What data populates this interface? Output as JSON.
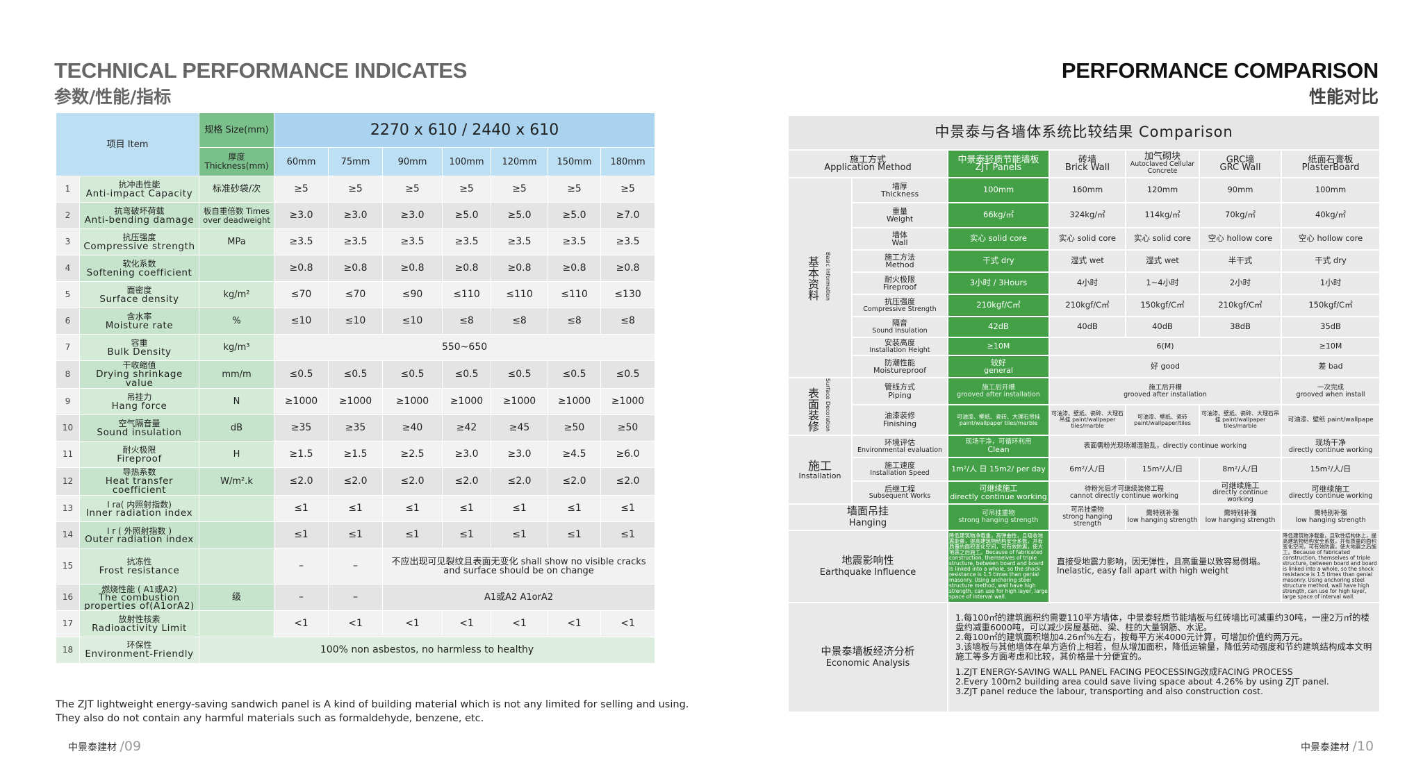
{
  "left": {
    "title_en": "TECHNICAL PERFORMANCE INDICATES",
    "title_cn": "参数/性能/指标",
    "item_header": "项目 Item",
    "size_header": "规格 Size(mm)",
    "size_value": "2270 x 610 / 2440 x 610",
    "thickness_header": "厚度 Thickness(mm)",
    "thicknesses": [
      "60mm",
      "75mm",
      "90mm",
      "100mm",
      "120mm",
      "150mm",
      "180mm"
    ],
    "rows": [
      {
        "no": "1",
        "cn": "抗冲击性能",
        "en": "Anti-impact Capacity",
        "unit": "标准砂袋/次",
        "values": [
          "≥5",
          "≥5",
          "≥5",
          "≥5",
          "≥5",
          "≥5",
          "≥5"
        ]
      },
      {
        "no": "2",
        "cn": "抗弯破坏荷载",
        "en": "Anti-bending damage",
        "unit": "板自重倍数 Times over deadweight",
        "values": [
          "≥3.0",
          "≥3.0",
          "≥3.0",
          "≥5.0",
          "≥5.0",
          "≥5.0",
          "≥7.0"
        ]
      },
      {
        "no": "3",
        "cn": "抗压强度",
        "en": "Compressive strength",
        "unit": "MPa",
        "values": [
          "≥3.5",
          "≥3.5",
          "≥3.5",
          "≥3.5",
          "≥3.5",
          "≥3.5",
          "≥3.5"
        ]
      },
      {
        "no": "4",
        "cn": "软化系数",
        "en": "Softening coefficient",
        "unit": "",
        "values": [
          "≥0.8",
          "≥0.8",
          "≥0.8",
          "≥0.8",
          "≥0.8",
          "≥0.8",
          "≥0.8"
        ]
      },
      {
        "no": "5",
        "cn": "面密度",
        "en": "Surface density",
        "unit": "kg/m²",
        "values": [
          "≤70",
          "≤70",
          "≤90",
          "≤110",
          "≤110",
          "≤110",
          "≤130"
        ]
      },
      {
        "no": "6",
        "cn": "含水率",
        "en": "Moisture rate",
        "unit": "%",
        "values": [
          "≤10",
          "≤10",
          "≤10",
          "≤8",
          "≤8",
          "≤8",
          "≤8"
        ]
      },
      {
        "no": "7",
        "cn": "容重",
        "en": "Bulk Density",
        "unit": "kg/m³",
        "span": "550~650"
      },
      {
        "no": "8",
        "cn": "干收缩值",
        "en": "Drying shrinkage value",
        "unit": "mm/m",
        "values": [
          "≤0.5",
          "≤0.5",
          "≤0.5",
          "≤0.5",
          "≤0.5",
          "≤0.5",
          "≤0.5"
        ]
      },
      {
        "no": "9",
        "cn": "吊挂力",
        "en": "Hang force",
        "unit": "N",
        "values": [
          "≥1000",
          "≥1000",
          "≥1000",
          "≥1000",
          "≥1000",
          "≥1000",
          "≥1000"
        ]
      },
      {
        "no": "10",
        "cn": "空气隔音量",
        "en": "Sound insulation",
        "unit": "dB",
        "values": [
          "≥35",
          "≥35",
          "≥40",
          "≥42",
          "≥45",
          "≥50",
          "≥50"
        ]
      },
      {
        "no": "11",
        "cn": "耐火极限",
        "en": "Fireproof",
        "unit": "H",
        "values": [
          "≥1.5",
          "≥1.5",
          "≥2.5",
          "≥3.0",
          "≥3.0",
          "≥4.5",
          "≥6.0"
        ]
      },
      {
        "no": "12",
        "cn": "导热系数",
        "en": "Heat transfer coefficient",
        "unit": "W/m².k",
        "values": [
          "≤2.0",
          "≤2.0",
          "≤2.0",
          "≤2.0",
          "≤2.0",
          "≤2.0",
          "≤2.0"
        ]
      },
      {
        "no": "13",
        "cn": "I ra( 内照射指数)",
        "en": "Inner radiation index",
        "unit": "",
        "values": [
          "≤1",
          "≤1",
          "≤1",
          "≤1",
          "≤1",
          "≤1",
          "≤1"
        ]
      },
      {
        "no": "14",
        "cn": "I r ( 外照射指数 )",
        "en": "Outer radiation index",
        "unit": "",
        "values": [
          "≤1",
          "≤1",
          "≤1",
          "≤1",
          "≤1",
          "≤1",
          "≤1"
        ]
      },
      {
        "no": "15",
        "cn": "抗冻性",
        "en": "Frost resistance",
        "unit": "",
        "pre": [
          "–",
          "–"
        ],
        "span": "不应出现可见裂纹且表面无变化 shall show no visible cracks and surface should be on change"
      },
      {
        "no": "16",
        "cn": "燃烧性能 ( A1或A2)",
        "en": "The combustion properties of(A1orA2)",
        "unit": "级",
        "pre": [
          "–",
          "–"
        ],
        "span": "A1或A2 A1orA2"
      },
      {
        "no": "17",
        "cn": "放射性核素",
        "en": "Radioactivity Limit",
        "unit": "",
        "values": [
          "<1",
          "<1",
          "<1",
          "<1",
          "<1",
          "<1",
          "<1"
        ]
      },
      {
        "no": "18",
        "cn": "环保性",
        "en": "Environment-Friendly",
        "full": "100% non asbestos, no harmless to healthy"
      }
    ],
    "note_line1": "The ZJT lightweight energy-saving sandwich panel is A kind of building material which is not any limited for selling and using.",
    "note_line2": "They also do not contain any harmful materials such as formaldehyde, benzene, etc.",
    "footer_brand": "中景泰建材",
    "footer_page": "/09"
  },
  "right": {
    "title_en": "PERFORMANCE COMPARISON",
    "title_cn": "性能对比",
    "table_title": "中景泰与各墙体系统比较结果 Comparison",
    "method_cn": "施工方式",
    "method_en": "Application Method",
    "columns": [
      {
        "cn": "中景泰轻质节能墙板",
        "en": "ZJT Panels"
      },
      {
        "cn": "砖墙",
        "en": "Brick Wall"
      },
      {
        "cn": "加气砌块",
        "en": "Autoclaved Cellular Concrete"
      },
      {
        "cn": "GRC墙",
        "en": "GRC Wall"
      },
      {
        "cn": "纸面石膏板",
        "en": "PlasterBoard"
      }
    ],
    "cat_basic_cn": "基本资料",
    "cat_basic_en": "Basic Information",
    "cat_surface_cn": "表面装修",
    "cat_surface_en": "Surface Decoration",
    "cat_install_cn": "施工",
    "cat_install_en": "Installation",
    "basic": [
      {
        "cn": "墙厚",
        "en": "Thickness",
        "vals": [
          "100mm",
          "160mm",
          "120mm",
          "90mm",
          "100mm"
        ]
      },
      {
        "cn": "重量",
        "en": "Weight",
        "vals": [
          "66kg/㎡",
          "324kg/㎡",
          "114kg/㎡",
          "70kg/㎡",
          "40kg/㎡"
        ]
      },
      {
        "cn": "墙体",
        "en": "Wall",
        "vals": [
          "实心 solid core",
          "实心 solid core",
          "实心 solid core",
          "空心 hollow core",
          "空心 hollow core"
        ]
      },
      {
        "cn": "施工方法",
        "en": "Method",
        "vals": [
          "干式 dry",
          "湿式 wet",
          "湿式 wet",
          "半干式",
          "干式 dry"
        ]
      },
      {
        "cn": "耐火极限",
        "en": "Fireproof",
        "vals": [
          "3小时 / 3Hours",
          "4小时",
          "1~4小时",
          "2小时",
          "1小时"
        ]
      },
      {
        "cn": "抗压强度",
        "en": "Compressive Strength",
        "vals": [
          "210kgf/C㎡",
          "210kgf/C㎡",
          "150kgf/C㎡",
          "210kgf/C㎡",
          "150kgf/C㎡"
        ]
      },
      {
        "cn": "隔音",
        "en": "Sound Insulation",
        "vals": [
          "42dB",
          "40dB",
          "40dB",
          "38dB",
          "35dB"
        ]
      }
    ],
    "height": {
      "cn": "安装高度",
      "en": "Installation Height",
      "zjt": "≥10M",
      "mid": "6(M)",
      "last": "≥10M"
    },
    "moist": {
      "cn": "防潮性能",
      "en": "Moistureproof",
      "zjt_cn": "较好",
      "zjt_en": "general",
      "mid": "好 good",
      "last": "差 bad"
    },
    "piping": {
      "cn": "管线方式",
      "en": "Piping",
      "zjt_cn": "施工后开槽",
      "zjt_en": "grooved after installation",
      "mid_cn": "施工后开槽",
      "mid_en": "grooved after installation",
      "last_cn": "一次完成",
      "last_en": "grooved when install"
    },
    "finishing": {
      "cn": "油漆装修",
      "en": "Finishing",
      "zjt": "可油漆、壁纸、瓷砖、大理石吊挂 paint/wallpaper tiles/marble",
      "brick": "可油漆、壁纸、瓷砖、大理石吊挂 paint/wallpaper tiles/marble",
      "acc": "可油漆、壁纸、瓷砖 paint/wallpaper/tiles",
      "grc": "可油漆、壁纸、瓷砖、大理石吊挂 paint/wallpaper tiles/marble",
      "pb": "可油漆、壁纸 paint/wallpape"
    },
    "env": {
      "cn": "环境评估",
      "en": "Environmental evaluation",
      "zjt_cn": "现场干净，可循环利用",
      "zjt_en": "Clean",
      "mid": "表面需粉光现场潮湿脏乱，directly continue working",
      "last_cn": "现场干净",
      "last_en": "directly continue working"
    },
    "speed": {
      "cn": "施工速度",
      "en": "Installation Speed",
      "vals": [
        "1m²/人 日 15m2/ per day",
        "6m²/人/日",
        "15m²/人/日",
        "8m²/人/日",
        "15m²/人/日"
      ]
    },
    "subsequent": {
      "cn": "后继工程",
      "en": "Subsequent Works",
      "zjt_cn": "可继续施工",
      "zjt_en": "directly continue working",
      "mid_cn": "待粉光后才可继续装修工程",
      "mid_en": "cannot directly continue working",
      "grc_cn": "可继续施工",
      "grc_en": "directly continue working",
      "pb_cn": "可继续施工",
      "pb_en": "directly continue working"
    },
    "hanging": {
      "cn": "墙面吊挂",
      "en": "Hanging",
      "vals": [
        [
          "可吊挂重物",
          "strong hanging strength"
        ],
        [
          "可吊挂重物",
          "strong hanging strength"
        ],
        [
          "需特别补强",
          "low hanging strength"
        ],
        [
          "需特别补强",
          "low hanging strength"
        ],
        [
          "需特别补强",
          "low hanging strength"
        ]
      ]
    },
    "quake": {
      "cn": "地震影响性",
      "en": "Earthquake Influence",
      "zjt": "降低建筑物净载重，高弹曲性，且吸收地震能量，提高建筑物结构安全系数，并有质量的面积变化空间，可有效防震，使大地震之后施工。Because of fabricated construction, themselves of triple structure, between board and board is linked into a whole, so the shock resistance is 1.5 times than genial masonry. Using anchoring steel structure method, wall have high strength, can use for high layer, large space of interval wall.",
      "mid_cn": "直接受地震力影响，因无弹性，且高重量以致容易倒塌。",
      "mid_en": "Inelastic, easy fall apart with high weight",
      "pb": "降低建筑物净载重，且软性结构体上，提高建筑物结构安全系数，并有质量的面积变化空间，可有效防震，使大地震之后施工。Because of fabricated construction, themselves of triple structure, between board and board is linked into a whole, so the shock resistance is 1.5 times than genial masonry. Using anchoring steel structure method, wall have high strength, can use for high layer, large space of interval wall."
    },
    "economic": {
      "cn": "中景泰墙板经济分析",
      "en": "Economic Analysis",
      "cn_lines": [
        "1.每100㎡的建筑面积约需要110平方墙体，中景泰轻质节能墙板与红砖墙比可减重约30吨，一座2万㎡的楼盘约减重6000吨，可以减少房屋基础、梁、柱的大量钢筋、水泥。",
        "2.每100㎡的建筑面积增加4.26㎡%左右，按每平方米4000元计算，可增加价值约两万元。",
        "3.该墙板与其他墙体在单方造价上相若，但从增加面积，降低运输量，降低劳动强度和节约建筑结构成本文明施工等多方面考虑和比较，其价格是十分便宜的。"
      ],
      "en_lines": [
        "1.ZJT ENERGY-SAVING WALL PANEL FACING PEOCESSING改成FACING PROCESS",
        "2.Every 100m2 building area could save living space about 4.26% by using ZJT panel.",
        "3.ZJT panel reduce the labour, transporting and also construction cost."
      ]
    },
    "footer_brand": "中景泰建材",
    "footer_page": "/10"
  }
}
